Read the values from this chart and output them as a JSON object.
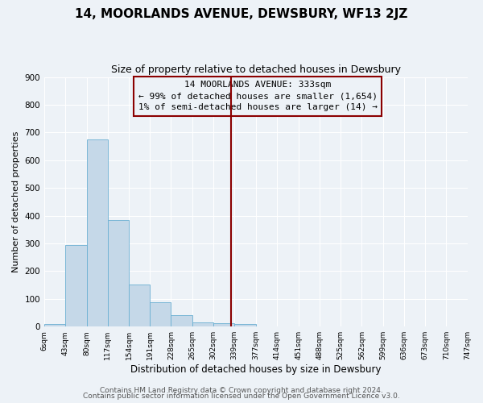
{
  "title": "14, MOORLANDS AVENUE, DEWSBURY, WF13 2JZ",
  "subtitle": "Size of property relative to detached houses in Dewsbury",
  "xlabel": "Distribution of detached houses by size in Dewsbury",
  "ylabel": "Number of detached properties",
  "bin_edges": [
    6,
    43,
    80,
    117,
    154,
    191,
    228,
    265,
    302,
    339,
    377,
    414,
    451,
    488,
    525,
    562,
    599,
    636,
    673,
    710,
    747
  ],
  "bar_heights": [
    10,
    293,
    675,
    385,
    152,
    87,
    40,
    15,
    13,
    10,
    0,
    0,
    0,
    0,
    0,
    0,
    0,
    0,
    0,
    0
  ],
  "bar_color": "#c5d8e8",
  "bar_edge_color": "#6aafd2",
  "vline_x": 333,
  "vline_color": "#8b0000",
  "annotation_line1": "14 MOORLANDS AVENUE: 333sqm",
  "annotation_line2": "← 99% of detached houses are smaller (1,654)",
  "annotation_line3": "1% of semi-detached houses are larger (14) →",
  "annotation_box_color": "#8b0000",
  "ylim": [
    0,
    900
  ],
  "yticks": [
    0,
    100,
    200,
    300,
    400,
    500,
    600,
    700,
    800,
    900
  ],
  "tick_labels": [
    "6sqm",
    "43sqm",
    "80sqm",
    "117sqm",
    "154sqm",
    "191sqm",
    "228sqm",
    "265sqm",
    "302sqm",
    "339sqm",
    "377sqm",
    "414sqm",
    "451sqm",
    "488sqm",
    "525sqm",
    "562sqm",
    "599sqm",
    "636sqm",
    "673sqm",
    "710sqm",
    "747sqm"
  ],
  "footer1": "Contains HM Land Registry data © Crown copyright and database right 2024.",
  "footer2": "Contains public sector information licensed under the Open Government Licence v3.0.",
  "bg_color": "#edf2f7",
  "grid_color": "#ffffff",
  "title_fontsize": 11,
  "subtitle_fontsize": 9,
  "annotation_fontsize": 8,
  "footer_fontsize": 6.5,
  "ylabel_fontsize": 8,
  "xlabel_fontsize": 8.5
}
